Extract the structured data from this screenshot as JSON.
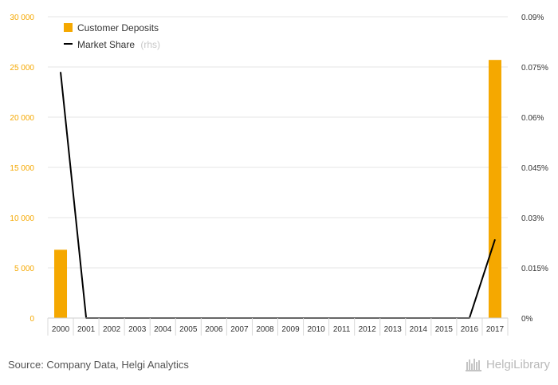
{
  "chart_data": {
    "type": "bar",
    "categories": [
      "2000",
      "2001",
      "2002",
      "2003",
      "2004",
      "2005",
      "2006",
      "2007",
      "2008",
      "2009",
      "2010",
      "2011",
      "2012",
      "2013",
      "2014",
      "2015",
      "2016",
      "2017"
    ],
    "series": [
      {
        "name": "Customer Deposits",
        "type": "bar",
        "axis": "left",
        "color": "#f5a800",
        "values": [
          6800,
          0,
          0,
          0,
          0,
          0,
          0,
          0,
          0,
          0,
          0,
          0,
          0,
          0,
          0,
          0,
          0,
          25700
        ]
      },
      {
        "name": "Market Share",
        "type": "line",
        "axis": "right",
        "color": "#000000",
        "values": [
          0.0735,
          0,
          0,
          0,
          0,
          0,
          0,
          0,
          0,
          0,
          0,
          0,
          0,
          0,
          0,
          0,
          0,
          0.0235
        ]
      }
    ],
    "y_left": {
      "min": 0,
      "max": 30000,
      "ticks": [
        "0",
        "5 000",
        "10 000",
        "15 000",
        "20 000",
        "25 000",
        "30 000"
      ]
    },
    "y_right": {
      "min": 0,
      "max": 0.09,
      "ticks": [
        "0%",
        "0.015%",
        "0.03%",
        "0.045%",
        "0.06%",
        "0.075%",
        "0.09%"
      ]
    },
    "grid": true,
    "legend": {
      "position": "top-left",
      "items": [
        "Customer Deposits",
        "Market Share"
      ],
      "suffix": "(rhs)"
    }
  },
  "footer": {
    "source": "Source: Company Data, Helgi Analytics",
    "brand": "HelgiLibrary"
  }
}
